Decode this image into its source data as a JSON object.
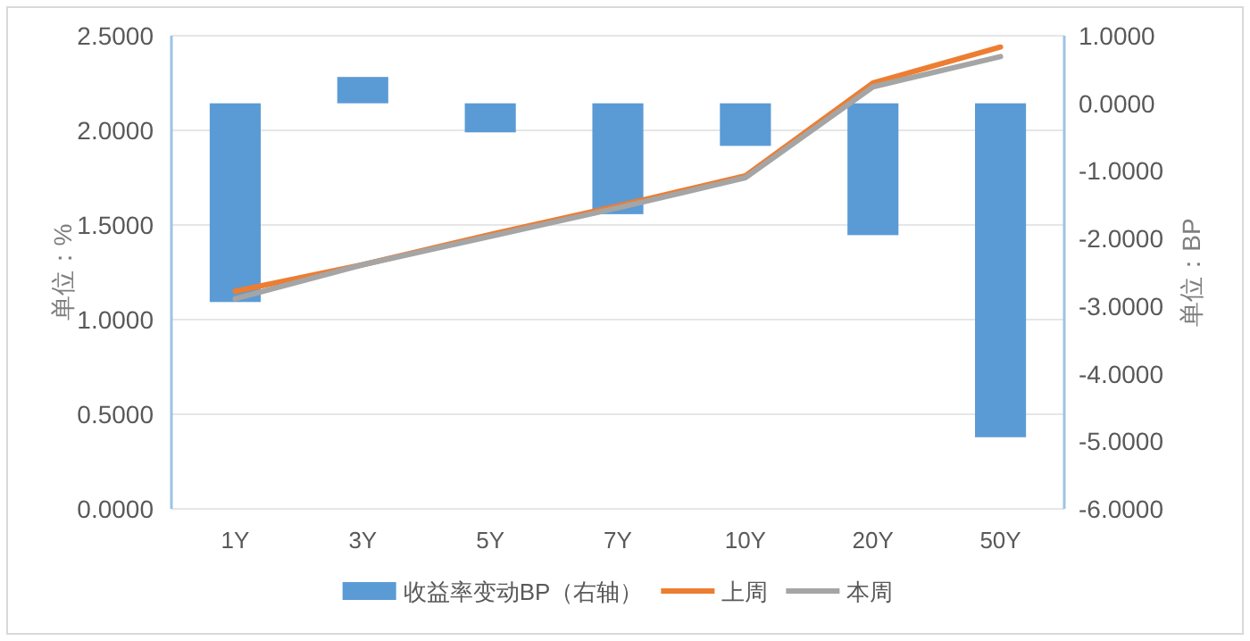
{
  "chart_data": {
    "type": "line",
    "categories": [
      "1Y",
      "3Y",
      "5Y",
      "7Y",
      "10Y",
      "20Y",
      "50Y"
    ],
    "ylabel": "单位：%",
    "y2label": "单位：BP",
    "ylim": [
      0,
      2.5
    ],
    "yticks": [
      {
        "value": 0,
        "label": "0.0000"
      },
      {
        "value": 0.5,
        "label": "0.5000"
      },
      {
        "value": 1,
        "label": "1.0000"
      },
      {
        "value": 1.5,
        "label": "1.5000"
      },
      {
        "value": 2,
        "label": "2.0000"
      },
      {
        "value": 2.5,
        "label": "2.5000"
      }
    ],
    "y2lim": [
      -6,
      1
    ],
    "y2ticks": [
      {
        "value": -6,
        "label": "-6.0000"
      },
      {
        "value": -5,
        "label": "-5.0000"
      },
      {
        "value": -4,
        "label": "-4.0000"
      },
      {
        "value": -3,
        "label": "-3.0000"
      },
      {
        "value": -2,
        "label": "-2.0000"
      },
      {
        "value": -1,
        "label": "-1.0000"
      },
      {
        "value": 0,
        "label": "0.0000"
      },
      {
        "value": 1,
        "label": "1.0000"
      }
    ],
    "series": [
      {
        "name": "收益率变动BP（右轴）",
        "type": "bar",
        "axis": "y2",
        "color": "#5b9bd5",
        "values": [
          -2.94,
          0.39,
          -0.43,
          -1.64,
          -0.63,
          -1.95,
          -4.94
        ]
      },
      {
        "name": "上周",
        "color": "#ed7d31",
        "values": [
          1.15,
          1.29,
          1.45,
          1.6,
          1.76,
          2.25,
          2.44
        ]
      },
      {
        "name": "本周",
        "color": "#a5a5a5",
        "values": [
          1.11,
          1.29,
          1.44,
          1.59,
          1.75,
          2.23,
          2.39
        ]
      }
    ],
    "grid": "y",
    "legend": "bottom"
  }
}
